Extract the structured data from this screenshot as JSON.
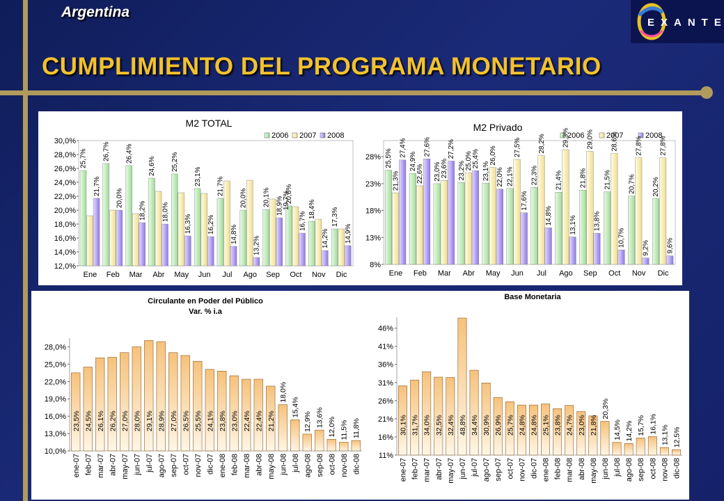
{
  "header": {
    "country": "Argentina",
    "title": "CUMPLIMIENTO DEL PROGRAMA MONETARIO",
    "logo": "EXANTE"
  },
  "colors": {
    "background": "#1b2a78",
    "title": "#f2c12e",
    "accent": "#b09a5c",
    "y2006": "#ccf5c7",
    "y2007": "#fff8cc",
    "y2008": "#c2b1f5"
  },
  "chart_data": [
    {
      "type": "bar",
      "title": "M2 TOTAL",
      "categories": [
        "Ene",
        "Feb",
        "Mar",
        "Abr",
        "May",
        "Jun",
        "Jul",
        "Ago",
        "Sep",
        "Oct",
        "Nov",
        "Dic"
      ],
      "series": [
        {
          "name": "2006",
          "values": [
            25.7,
            26.7,
            26.4,
            24.6,
            25.2,
            23.1,
            21.7,
            20.0,
            20.1,
            20.6,
            18.4,
            17.3
          ]
        },
        {
          "name": "2007",
          "values": [
            19.2,
            20.0,
            19.5,
            22.7,
            22.5,
            22.4,
            24.2,
            24.3,
            21.6,
            20.5,
            18.7,
            17.3
          ]
        },
        {
          "name": "2008",
          "values": [
            21.7,
            20.0,
            18.2,
            18.0,
            16.3,
            16.2,
            14.8,
            13.2,
            18.9,
            16.7,
            14.2,
            14.9
          ]
        }
      ],
      "data_labels": [
        [
          "25,7%",
          "26,7%",
          "26,4%",
          "24,6%",
          "25,2%",
          "23,1%",
          "21,7%",
          "20,0%",
          "20,1%",
          "20,6%",
          "18,4%",
          "17,3%"
        ],
        [
          "",
          "",
          "",
          "",
          "",
          "",
          "",
          "",
          "",
          "",
          "",
          ""
        ],
        [
          "21,7%",
          "20,0%",
          "18,2%",
          "18,0%",
          "16,3%",
          "16,2%",
          "14,8%",
          "13,2%",
          "18,9%",
          "16,7%",
          "14,2%",
          "14,9%"
        ]
      ],
      "extra_labels": [
        "19,7%"
      ],
      "yticks": [
        "12,0%",
        "14,0%",
        "16,0%",
        "18,0%",
        "20,0%",
        "22,0%",
        "24,0%",
        "26,0%",
        "28,0%",
        "30,0%"
      ],
      "ylim": [
        12,
        30
      ],
      "legend": [
        "2006",
        "2007",
        "2008"
      ],
      "legend_position": "top-right"
    },
    {
      "type": "bar",
      "title": "M2 Privado",
      "categories": [
        "Ene",
        "Feb",
        "Mar",
        "Abr",
        "May",
        "Jun",
        "Jul",
        "Ago",
        "Sep",
        "Oct",
        "Nov",
        "Dic"
      ],
      "series": [
        {
          "name": "2006",
          "values": [
            25.5,
            24.9,
            23.0,
            23.2,
            23.1,
            22.1,
            22.3,
            21.4,
            21.8,
            21.5,
            20.7,
            20.2
          ]
        },
        {
          "name": "2007",
          "values": [
            21.3,
            22.6,
            23.6,
            25.0,
            26.0,
            27.5,
            28.2,
            29.3,
            29.0,
            28.6,
            27.8,
            27.8
          ]
        },
        {
          "name": "2008",
          "values": [
            27.4,
            27.6,
            27.2,
            25.4,
            22.0,
            17.6,
            14.8,
            13.1,
            13.8,
            10.7,
            9.2,
            9.6
          ]
        }
      ],
      "data_labels": [
        [
          "25,5%",
          "24,9%",
          "23,0%",
          "23,2%",
          "23,1%",
          "22,1%",
          "22,3%",
          "21,4%",
          "21,8%",
          "21,5%",
          "20,7%",
          "20,2%"
        ],
        [
          "21,3%",
          "22,6%",
          "23,6%",
          "25,0%",
          "26,0%",
          "27,5%",
          "28,2%",
          "29,3%",
          "29,0%",
          "28,6%",
          "27,8%",
          "27,8%"
        ],
        [
          "27,4%",
          "27,6%",
          "27,2%",
          "25,4%",
          "22,0%",
          "17,6%",
          "14,8%",
          "13,1%",
          "13,8%",
          "10,7%",
          "9,2%",
          "9,6%"
        ]
      ],
      "yticks": [
        "8%",
        "13%",
        "18%",
        "23%",
        "28%"
      ],
      "ylim": [
        8,
        31
      ],
      "legend": [
        "2006",
        "2007",
        "2008"
      ],
      "legend_position": "top-right"
    },
    {
      "type": "bar",
      "title": "Circulante en Poder del Público",
      "subtitle": "Var. % i.a",
      "categories": [
        "ene-07",
        "feb-07",
        "mar-07",
        "abr-07",
        "may-07",
        "jun-07",
        "jul-07",
        "ago-07",
        "sep-07",
        "oct-07",
        "nov-07",
        "dic-07",
        "ene-08",
        "feb-08",
        "mar-08",
        "abr-08",
        "may-08",
        "jun-08",
        "jul-08",
        "ago-08",
        "sep-08",
        "oct-08",
        "nov-08",
        "dic-08"
      ],
      "values": [
        23.5,
        24.5,
        26.1,
        26.2,
        27.0,
        28.0,
        29.1,
        28.9,
        27.0,
        26.5,
        25.5,
        24.1,
        23.8,
        23.0,
        22.4,
        22.4,
        21.2,
        18.0,
        15.4,
        12.9,
        13.6,
        12.0,
        11.5,
        11.8
      ],
      "data_labels": [
        "23,5%",
        "24,5%",
        "26,1%",
        "26,2%",
        "27,0%",
        "28,0%",
        "29,1%",
        "28,9%",
        "27,0%",
        "26,5%",
        "25,5%",
        "24,1%",
        "23,8%",
        "23,0%",
        "22,4%",
        "22,4%",
        "21,2%",
        "18,0%",
        "15,4%",
        "12,9%",
        "13,6%",
        "12,0%",
        "11,5%",
        "11,8%"
      ],
      "yticks": [
        "10,0%",
        "13,0%",
        "16,0%",
        "19,0%",
        "22,0%",
        "25,0%",
        "28,0%"
      ],
      "ylim": [
        10,
        29.5
      ]
    },
    {
      "type": "bar",
      "title": "Base Monetaria",
      "categories": [
        "ene-07",
        "feb-07",
        "mar-07",
        "abr-07",
        "may-07",
        "jun-07",
        "jul-07",
        "ago-07",
        "sep-07",
        "oct-07",
        "nov-07",
        "dic-07",
        "ene-08",
        "feb-08",
        "mar-08",
        "abr-08",
        "may-08",
        "jun-08",
        "jul-08",
        "ago-08",
        "sep-08",
        "oct-08",
        "nov-08",
        "dic-08"
      ],
      "values": [
        30.1,
        31.7,
        34.0,
        32.5,
        32.4,
        48.8,
        34.4,
        30.9,
        26.9,
        25.7,
        24.8,
        24.8,
        25.1,
        23.8,
        24.7,
        23.0,
        21.8,
        20.3,
        14.5,
        14.2,
        15.7,
        16.1,
        13.1,
        12.5
      ],
      "data_labels": [
        "30,1%",
        "31,7%",
        "34,0%",
        "32,5%",
        "32,4%",
        "48,8%",
        "34,4%",
        "30,9%",
        "26,9%",
        "25,7%",
        "24,8%",
        "24,8%",
        "25,1%",
        "23,8%",
        "24,7%",
        "23,0%",
        "21,8%",
        "20,3%",
        "14,5%",
        "14,2%",
        "15,7%",
        "16,1%",
        "13,1%",
        "12,5%"
      ],
      "yticks": [
        "11%",
        "16%",
        "21%",
        "26%",
        "31%",
        "36%",
        "41%",
        "46%"
      ],
      "ylim": [
        11,
        49
      ]
    }
  ]
}
